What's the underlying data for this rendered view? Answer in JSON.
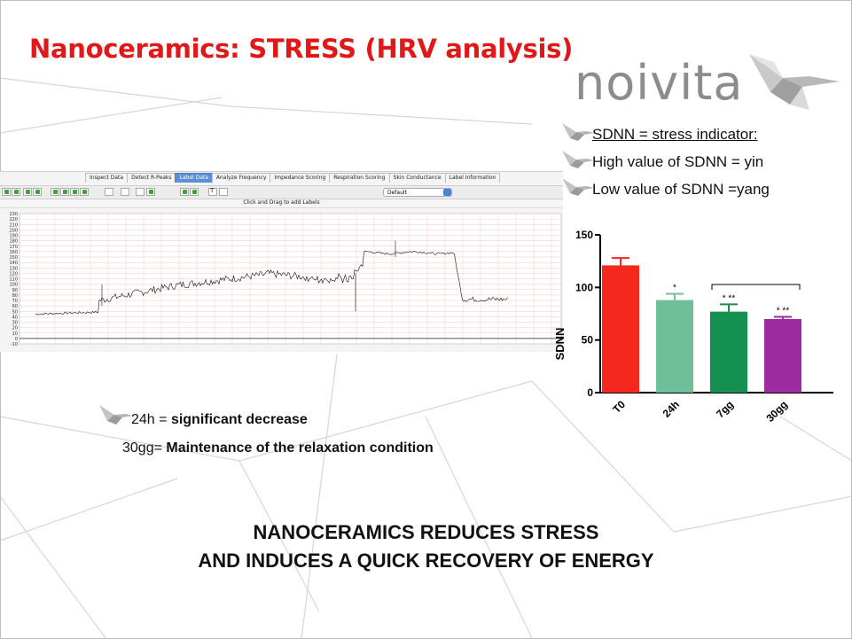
{
  "slide": {
    "title": "Nanoceramics: STRESS (HRV analysis)",
    "title_color": "#e01818",
    "logo_text": "noivita",
    "bullets": [
      {
        "text": "SDNN = stress indicator:",
        "underline": true
      },
      {
        "text": "High value of SDNN = yin",
        "underline": false
      },
      {
        "text": "Low value of SDNN =yang",
        "underline": false
      }
    ],
    "note_24h_prefix": "24h = ",
    "note_24h_bold": "significant decrease",
    "note_30_prefix": "30gg= ",
    "note_30_bold": "Maintenance of the relaxation condition",
    "conclusion_line1": "NANOCERAMICS REDUCES STRESS",
    "conclusion_line2": "AND INDUCES A QUICK RECOVERY OF ENERGY"
  },
  "software": {
    "tabs": [
      "Inspect Data",
      "Detect R-Peaks",
      "Label Data",
      "Analyze Frequency",
      "Impedance Scoring",
      "Respiration Scoring",
      "Skin Conductance",
      "Label Information"
    ],
    "active_tab": 2,
    "dropdown_value": "Default",
    "hint_text": "Click and Drag to add Labels",
    "y_ticks": [
      "230",
      "220",
      "210",
      "200",
      "190",
      "180",
      "170",
      "160",
      "150",
      "140",
      "130",
      "120",
      "110",
      "100",
      "90",
      "80",
      "70",
      "60",
      "50",
      "40",
      "30",
      "20",
      "10",
      "0",
      "-10"
    ],
    "toolbar_icons": [
      "prev-icon",
      "next-icon",
      "record-icon",
      "play-icon",
      "rewind-icon",
      "forward-icon",
      "step-back-icon",
      "step-forward-icon",
      "zoom-icon",
      "page-icon",
      "label-icon",
      "marker-icon",
      "skip-back-icon",
      "skip-forward-icon",
      "text-icon",
      "trash-icon"
    ]
  },
  "chart_data": {
    "type": "bar",
    "categories": [
      "T0",
      "24h",
      "7gg",
      "30gg"
    ],
    "values": [
      121,
      88,
      77,
      70
    ],
    "errors": [
      7,
      6,
      7,
      2
    ],
    "sig_labels": [
      "",
      "*",
      "* **",
      "* **"
    ],
    "colors": [
      "#f5281e",
      "#6fbf9a",
      "#149150",
      "#9c2aa0"
    ],
    "ylabel": "SDNN",
    "y_ticks": [
      "0",
      "50",
      "100",
      "150"
    ],
    "ylim": [
      0,
      150
    ]
  }
}
